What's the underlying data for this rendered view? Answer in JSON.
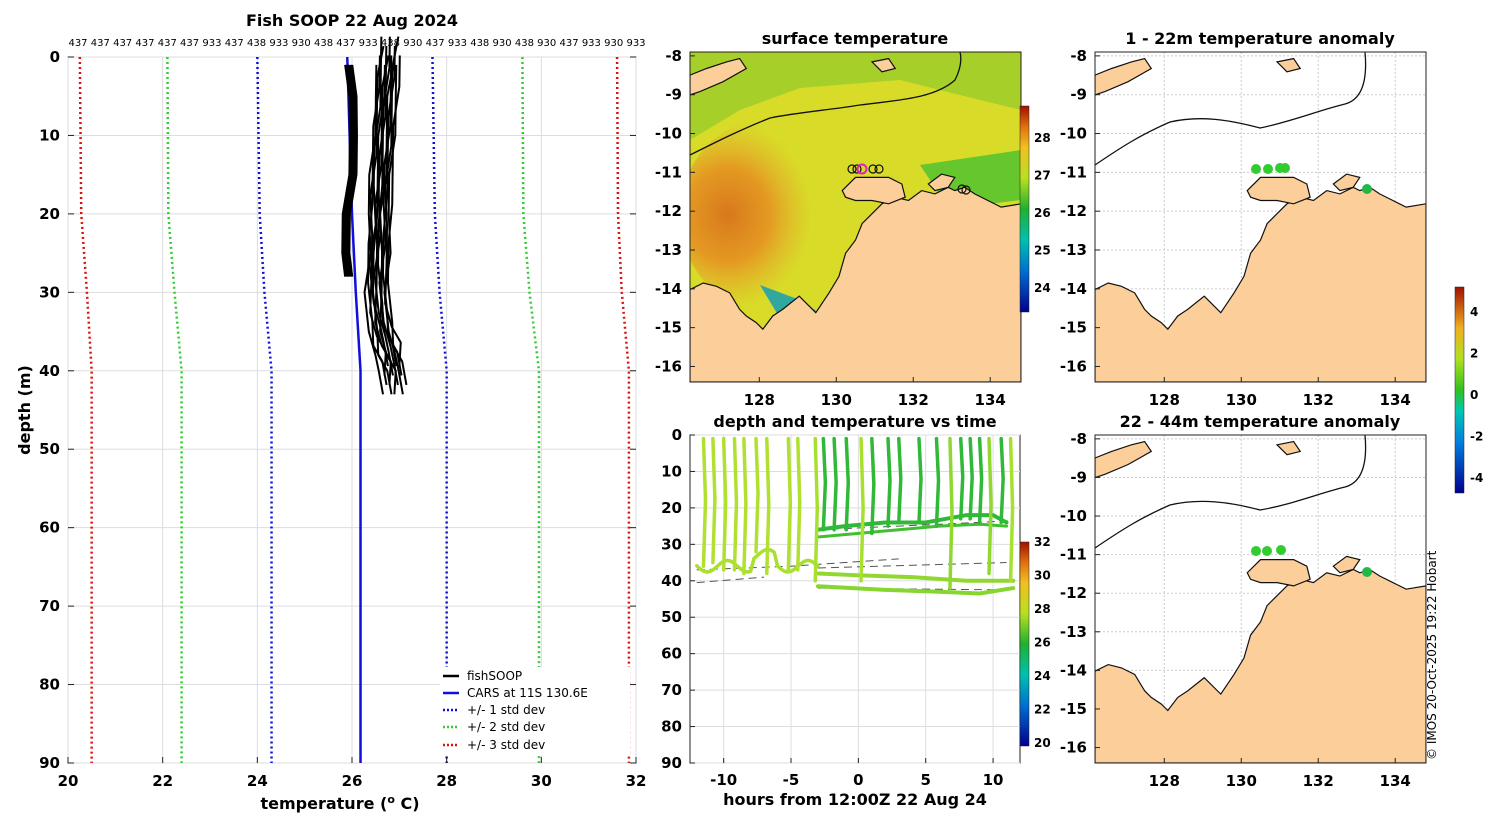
{
  "colors": {
    "mean": "#1010dd",
    "std1": "#1010dd",
    "std2": "#33cc33",
    "std3": "#dd1111",
    "land": "#fccf9a",
    "grid": "#cccccc"
  },
  "chart_data": [
    {
      "type": "line",
      "title": "Fish SOOP 22 Aug 2024",
      "xlabel": "temperature (",
      "xlabel_sup": "o",
      "xlabel_end": " C)",
      "ylabel": "depth (m)",
      "xlim": [
        20,
        32
      ],
      "ylim": [
        0,
        90
      ],
      "xticks": [
        "20",
        "22",
        "24",
        "26",
        "28",
        "30",
        "32"
      ],
      "yticks": [
        "0",
        "10",
        "20",
        "30",
        "40",
        "50",
        "60",
        "70",
        "80",
        "90"
      ],
      "top_labels": [
        "437",
        "437",
        "437",
        "437",
        "437",
        "437",
        "933",
        "437",
        "438",
        "933",
        "930",
        "438",
        "437",
        "933",
        "438",
        "930",
        "437",
        "933",
        "438",
        "930",
        "438",
        "930",
        "437",
        "933",
        "930",
        "933"
      ],
      "legend": [
        "fishSOOP",
        "CARS at 11S 130.6E",
        "+/- 1 std dev",
        "+/- 2 std dev",
        "+/- 3 std dev"
      ],
      "series": [
        {
          "name": "CARS",
          "depth": [
            0,
            10,
            20,
            30,
            40,
            50,
            60,
            70,
            80,
            90
          ],
          "values": [
            25.9,
            25.95,
            26.0,
            26.08,
            26.18,
            26.18,
            26.18,
            26.18,
            26.18,
            26.18
          ]
        },
        {
          "name": "+1 std",
          "depth": [
            0,
            20,
            30,
            40,
            90
          ],
          "values": [
            27.7,
            27.75,
            27.85,
            28.0,
            28.0
          ]
        },
        {
          "name": "-1 std",
          "depth": [
            0,
            20,
            30,
            40,
            90
          ],
          "values": [
            24.0,
            24.05,
            24.15,
            24.3,
            24.3
          ]
        },
        {
          "name": "+2 std",
          "depth": [
            0,
            20,
            30,
            40,
            90
          ],
          "values": [
            29.6,
            29.62,
            29.75,
            29.95,
            29.95
          ]
        },
        {
          "name": "-2 std",
          "depth": [
            0,
            20,
            30,
            40,
            90
          ],
          "values": [
            22.1,
            22.12,
            22.25,
            22.4,
            22.4
          ]
        },
        {
          "name": "+3 std",
          "depth": [
            0,
            20,
            30,
            40,
            90
          ],
          "values": [
            31.6,
            31.62,
            31.7,
            31.85,
            31.85
          ]
        },
        {
          "name": "-3 std",
          "depth": [
            0,
            20,
            30,
            40,
            90
          ],
          "values": [
            20.25,
            20.28,
            20.4,
            20.5,
            20.5
          ]
        },
        {
          "name": "fishSOOP shallow",
          "depth": [
            1,
            5,
            10,
            15,
            20,
            25,
            28
          ],
          "values": [
            25.95,
            26.0,
            26.05,
            26.0,
            25.9,
            25.85,
            25.95
          ]
        },
        {
          "name": "fishSOOP deep",
          "depth": [
            1,
            5,
            10,
            15,
            20,
            25,
            30,
            35,
            38,
            40,
            43
          ],
          "values": [
            26.8,
            26.75,
            26.7,
            26.65,
            26.6,
            26.6,
            26.55,
            26.6,
            26.7,
            26.85,
            26.9
          ]
        }
      ]
    },
    {
      "type": "heatmap",
      "title": "surface temperature",
      "xticks": [
        "128",
        "130",
        "132",
        "134"
      ],
      "yticks": [
        "-8",
        "-9",
        "-10",
        "-11",
        "-12",
        "-13",
        "-14",
        "-15",
        "-16"
      ],
      "colorbar_ticks": [
        "28",
        "27",
        "26",
        "25",
        "24"
      ]
    },
    {
      "type": "scatter",
      "title": "depth and temperature vs time",
      "xlabel": "hours from 12:00Z 22 Aug 24",
      "xlim": [
        -12.5,
        12
      ],
      "ylim": [
        0,
        90
      ],
      "xticks": [
        "-10",
        "-5",
        "0",
        "5",
        "10"
      ],
      "yticks": [
        "0",
        "10",
        "20",
        "30",
        "40",
        "50",
        "60",
        "70",
        "80",
        "90"
      ],
      "colorbar_ticks": [
        "32",
        "30",
        "28",
        "26",
        "24",
        "22",
        "20"
      ]
    },
    {
      "type": "heatmap",
      "title": "1 - 22m temperature anomaly",
      "xticks": [
        "128",
        "130",
        "132",
        "134"
      ],
      "yticks": [
        "-8",
        "-9",
        "-10",
        "-11",
        "-12",
        "-13",
        "-14",
        "-15",
        "-16"
      ],
      "colorbar_ticks": [
        "4",
        "2",
        "0",
        "-2",
        "-4"
      ]
    },
    {
      "type": "heatmap",
      "title": "22 - 44m temperature anomaly",
      "xticks": [
        "128",
        "130",
        "132",
        "134"
      ],
      "yticks": [
        "-8",
        "-9",
        "-10",
        "-11",
        "-12",
        "-13",
        "-14",
        "-15",
        "-16"
      ]
    }
  ],
  "footer": {
    "credit": "© IMOS 20-Oct-2025 19:22 Hobart"
  }
}
